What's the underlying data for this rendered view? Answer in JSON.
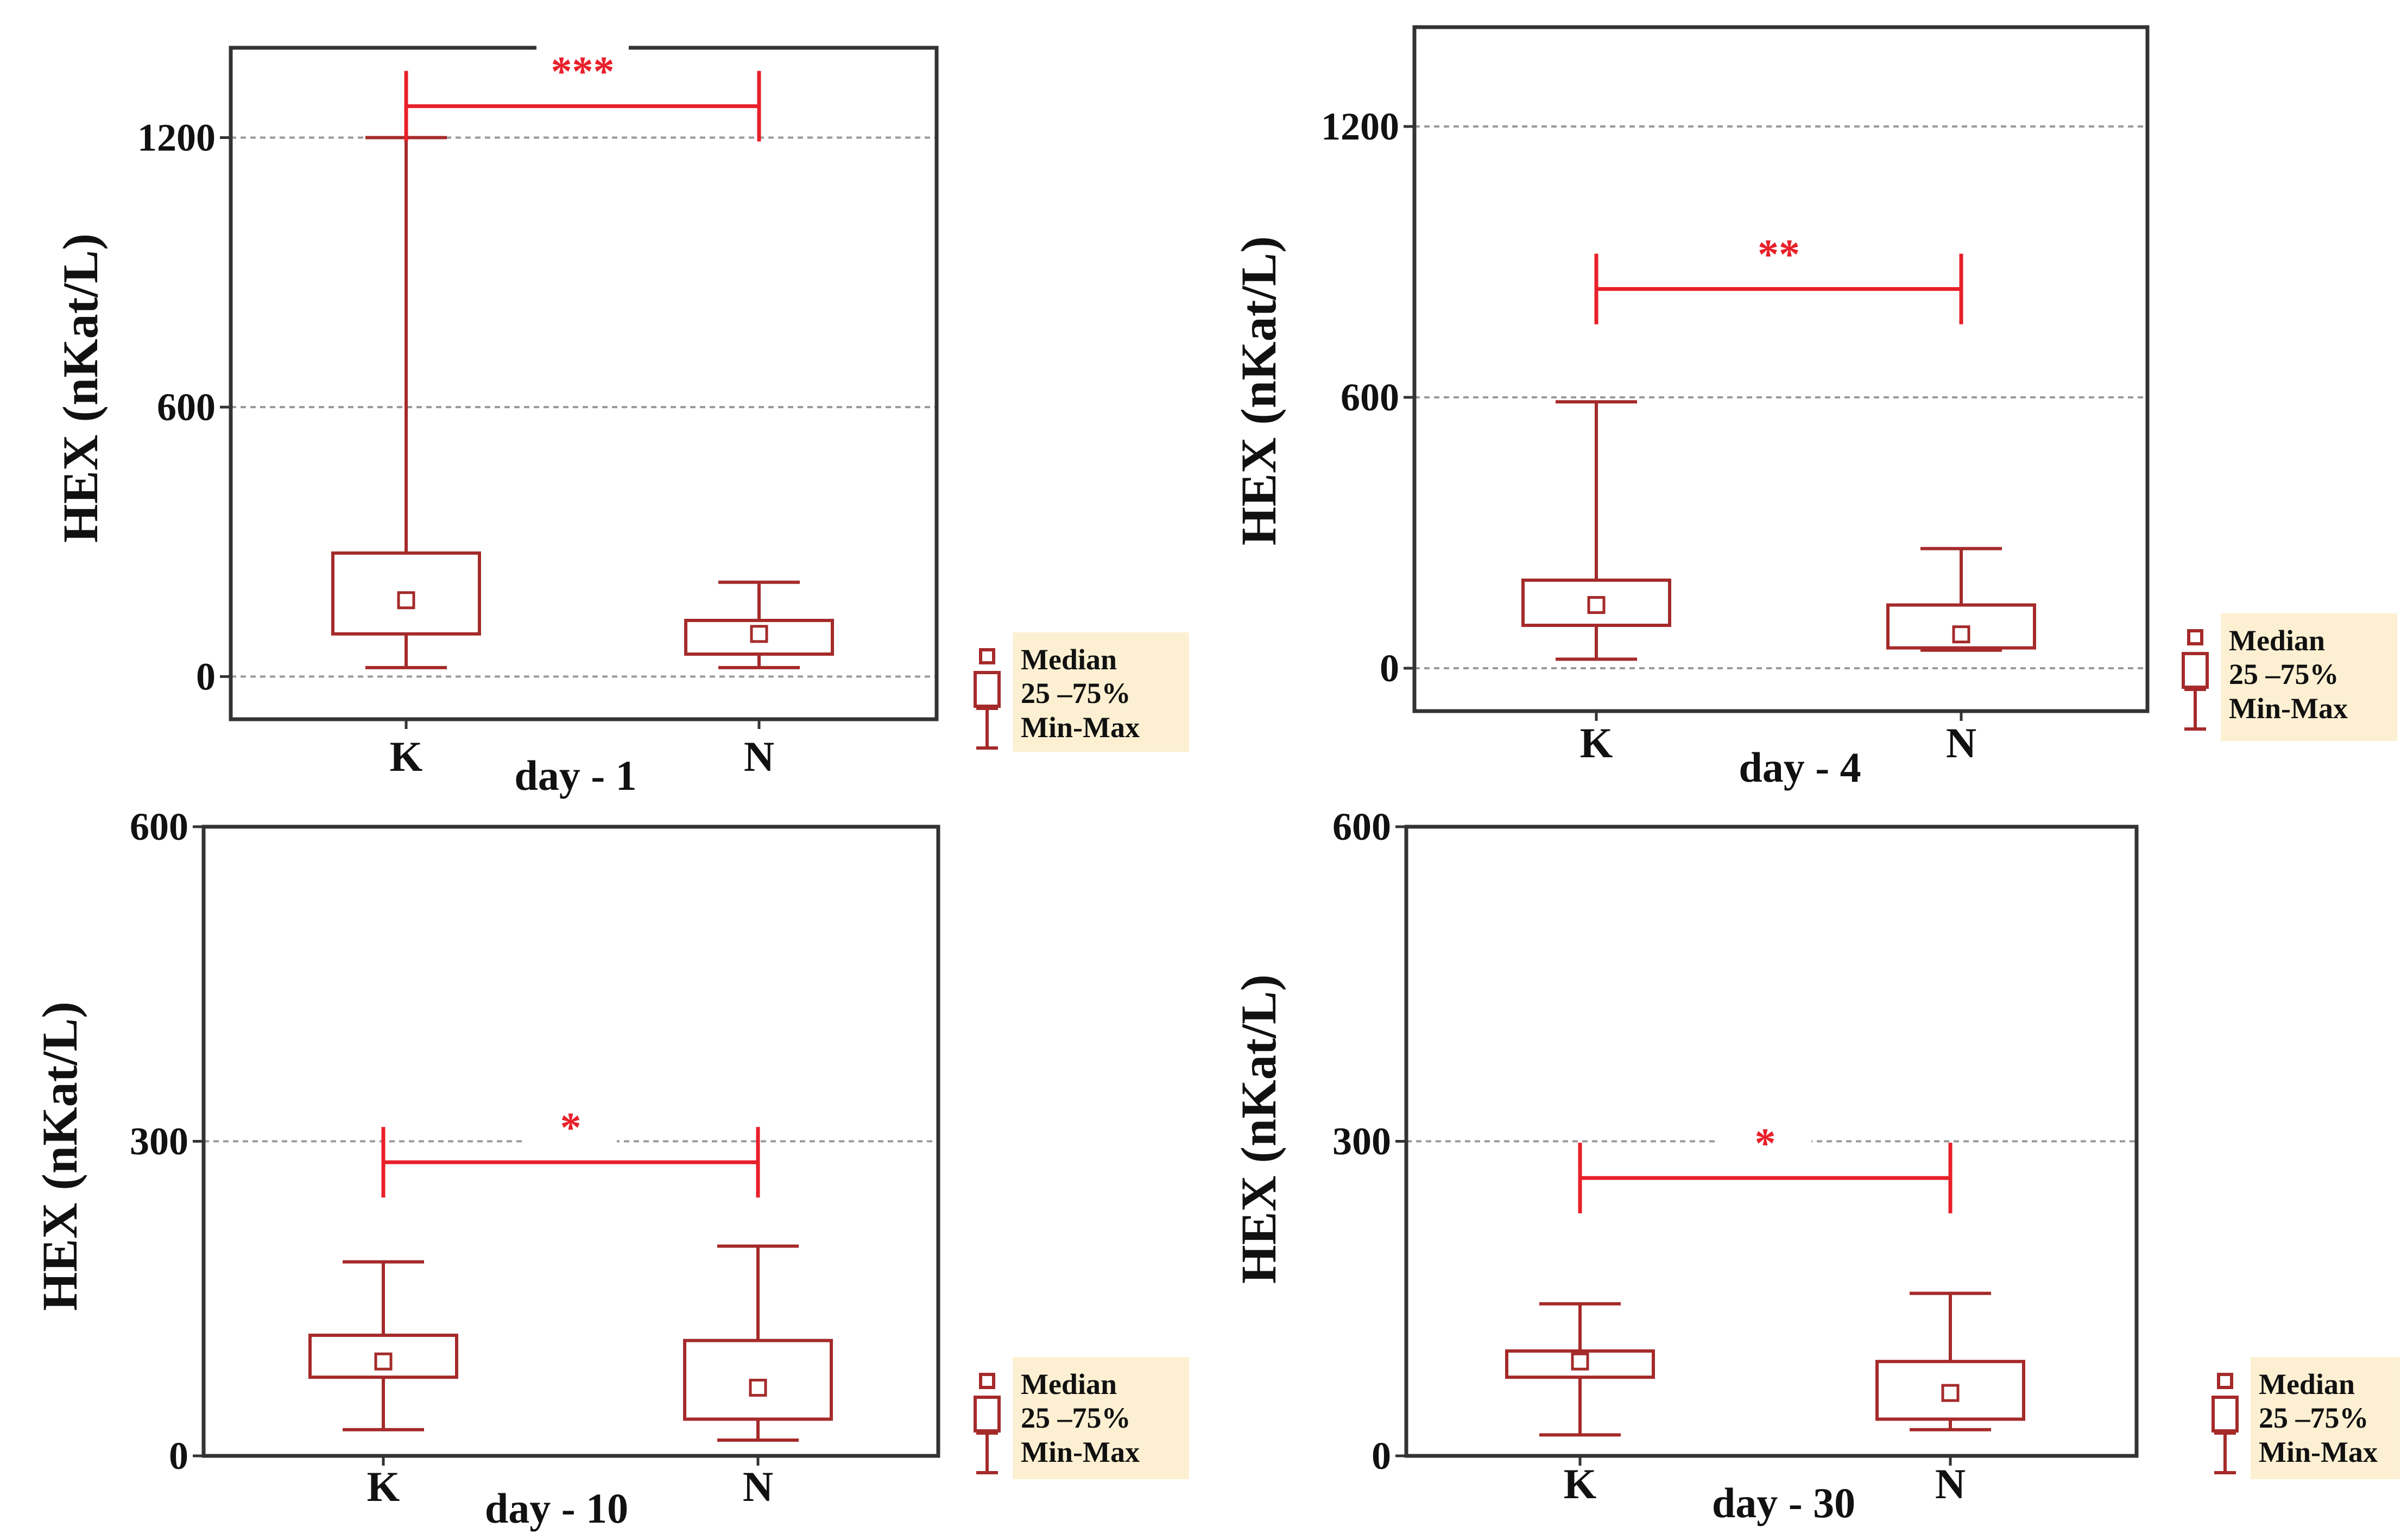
{
  "colors": {
    "box": "#a52a2a",
    "significance": "#e8202a",
    "legend_bg": "#fdf0d2",
    "frame": "#333333",
    "grid": "#9a9a9a",
    "text": "#111111",
    "label_bg": "#ffffff"
  },
  "chart_data": [
    {
      "type": "box",
      "title": "day - 1",
      "xlabel": "",
      "ylabel": "HEX (nKat/L)",
      "ylim": [
        -95,
        1400
      ],
      "yticks": [
        0,
        600,
        1200
      ],
      "ytick_labels": [
        "0",
        "600",
        "1200"
      ],
      "categories": [
        "K",
        "N"
      ],
      "series": [
        {
          "name": "K",
          "min": 20,
          "q1": 95,
          "median": 170,
          "q3": 275,
          "max": 1200
        },
        {
          "name": "N",
          "min": 20,
          "q1": 50,
          "median": 95,
          "q3": 125,
          "max": 210
        }
      ],
      "significance": {
        "label": "***",
        "y": 1270
      },
      "legend": {
        "position": "right",
        "entries": [
          "Median",
          "25 –75%",
          "Min-Max"
        ]
      },
      "grid": true
    },
    {
      "type": "box",
      "title": "day - 4",
      "xlabel": "",
      "ylabel": "HEX (nKat/L)",
      "ylim": [
        -95,
        1420
      ],
      "yticks": [
        0,
        600,
        1200
      ],
      "ytick_labels": [
        "0",
        "600",
        "1200"
      ],
      "categories": [
        "K",
        "N"
      ],
      "series": [
        {
          "name": "K",
          "min": 20,
          "q1": 95,
          "median": 140,
          "q3": 195,
          "max": 590
        },
        {
          "name": "N",
          "min": 40,
          "q1": 45,
          "median": 75,
          "q3": 140,
          "max": 265
        }
      ],
      "significance": {
        "label": "**",
        "y": 840
      },
      "legend": {
        "position": "right",
        "entries": [
          "Median",
          "25 –75%",
          "Min-Max"
        ]
      },
      "grid": true
    },
    {
      "type": "box",
      "title": "day - 10",
      "xlabel": "",
      "ylabel": "HEX (nKat/L)",
      "ylim": [
        0,
        600
      ],
      "yticks": [
        0,
        300,
        600
      ],
      "ytick_labels": [
        "0",
        "300",
        "600"
      ],
      "categories": [
        "K",
        "N"
      ],
      "series": [
        {
          "name": "K",
          "min": 25,
          "q1": 75,
          "median": 90,
          "q3": 115,
          "max": 185
        },
        {
          "name": "N",
          "min": 15,
          "q1": 35,
          "median": 65,
          "q3": 110,
          "max": 200
        }
      ],
      "significance": {
        "label": "*",
        "y": 280
      },
      "legend": {
        "position": "right",
        "entries": [
          "Median",
          "25 –75%",
          "Min-Max"
        ]
      },
      "grid": true
    },
    {
      "type": "box",
      "title": "day - 30",
      "xlabel": "",
      "ylabel": "HEX (nKat/L)",
      "ylim": [
        0,
        600
      ],
      "yticks": [
        0,
        300,
        600
      ],
      "ytick_labels": [
        "0",
        "300",
        "600"
      ],
      "categories": [
        "K",
        "N"
      ],
      "series": [
        {
          "name": "K",
          "min": 20,
          "q1": 75,
          "median": 90,
          "q3": 100,
          "max": 145
        },
        {
          "name": "N",
          "min": 25,
          "q1": 35,
          "median": 60,
          "q3": 90,
          "max": 155
        }
      ],
      "significance": {
        "label": "*",
        "y": 265
      },
      "legend": {
        "position": "right",
        "entries": [
          "Median",
          "25 –75%",
          "Min-Max"
        ]
      },
      "grid": true
    }
  ]
}
